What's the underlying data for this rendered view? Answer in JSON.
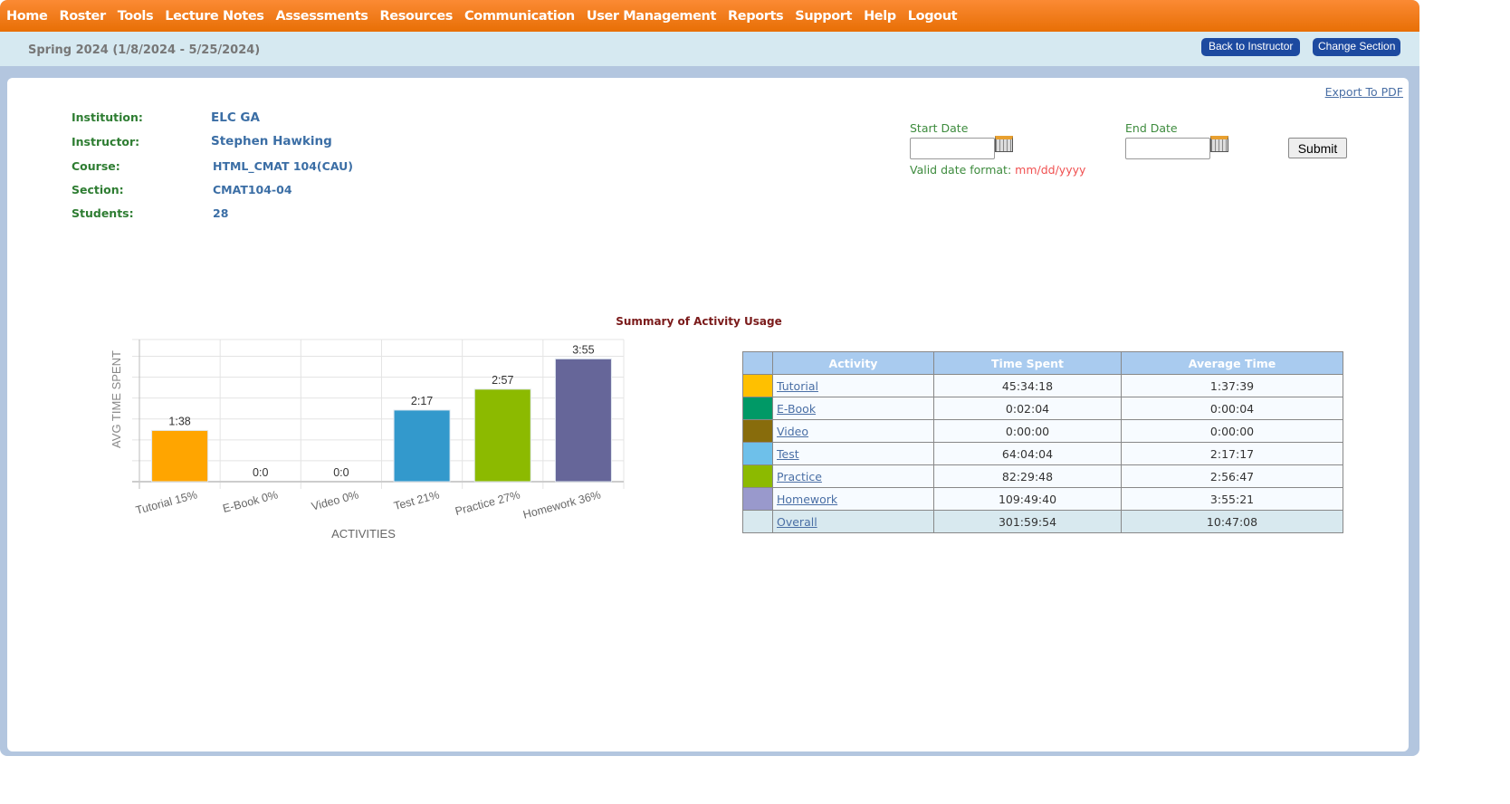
{
  "nav": [
    "Home",
    "Roster",
    "Tools",
    "Lecture Notes",
    "Assessments",
    "Resources",
    "Communication",
    "User Management",
    "Reports",
    "Support",
    "Help",
    "Logout"
  ],
  "term": "Spring 2024 (1/8/2024 - 5/25/2024)",
  "buttons": {
    "back": "Back to Instructor",
    "change": "Change Section",
    "export": "Export To PDF",
    "submit": "Submit"
  },
  "info": [
    {
      "label": "Institution:",
      "value": "ELC GA"
    },
    {
      "label": "Instructor:",
      "value": "Stephen Hawking"
    },
    {
      "label": "Course:",
      "value": "HTML_CMAT 104(CAU)"
    },
    {
      "label": "Section:",
      "value": "CMAT104-04"
    },
    {
      "label": "Students:",
      "value": "28"
    }
  ],
  "form": {
    "start_label": "Start Date",
    "end_label": "End Date",
    "start_value": "",
    "end_value": "",
    "format_label": "Valid date format:",
    "format_value": "mm/dd/yyyy"
  },
  "summary_title": "Summary of Activity Usage",
  "chart_data": {
    "type": "bar",
    "xlabel": "ACTIVITIES",
    "ylabel": "AVG TIME SPENT",
    "categories": [
      "Tutorial 15%",
      "E-Book 0%",
      "Video 0%",
      "Test 21%",
      "Practice 27%",
      "Homework 36%"
    ],
    "values_minutes": [
      98,
      0,
      0,
      137,
      177,
      235
    ],
    "data_labels": [
      "1:38",
      "0:0",
      "0:0",
      "2:17",
      "2:57",
      "3:55"
    ],
    "colors": [
      "#ffa500",
      "#0e9a6a",
      "#8a7010",
      "#3399cc",
      "#8cba00",
      "#666699"
    ],
    "ylim": [
      0,
      272
    ],
    "grid": true
  },
  "table": {
    "headers": [
      "Activity",
      "Time Spent",
      "Average Time"
    ],
    "rows": [
      {
        "activity": "Tutorial",
        "time": "45:34:18",
        "avg": "1:37:39",
        "color": "#ffc000"
      },
      {
        "activity": "E-Book",
        "time": "0:02:04",
        "avg": "0:00:04",
        "color": "#009966"
      },
      {
        "activity": "Video",
        "time": "0:00:00",
        "avg": "0:00:00",
        "color": "#886c0c"
      },
      {
        "activity": "Test",
        "time": "64:04:04",
        "avg": "2:17:17",
        "color": "#6ec0ea"
      },
      {
        "activity": "Practice",
        "time": "82:29:48",
        "avg": "2:56:47",
        "color": "#8cba00"
      },
      {
        "activity": "Homework",
        "time": "109:49:40",
        "avg": "3:55:21",
        "color": "#9999cc"
      },
      {
        "activity": "Overall",
        "time": "301:59:54",
        "avg": "10:47:08",
        "color": "#d8e9ef"
      }
    ]
  }
}
